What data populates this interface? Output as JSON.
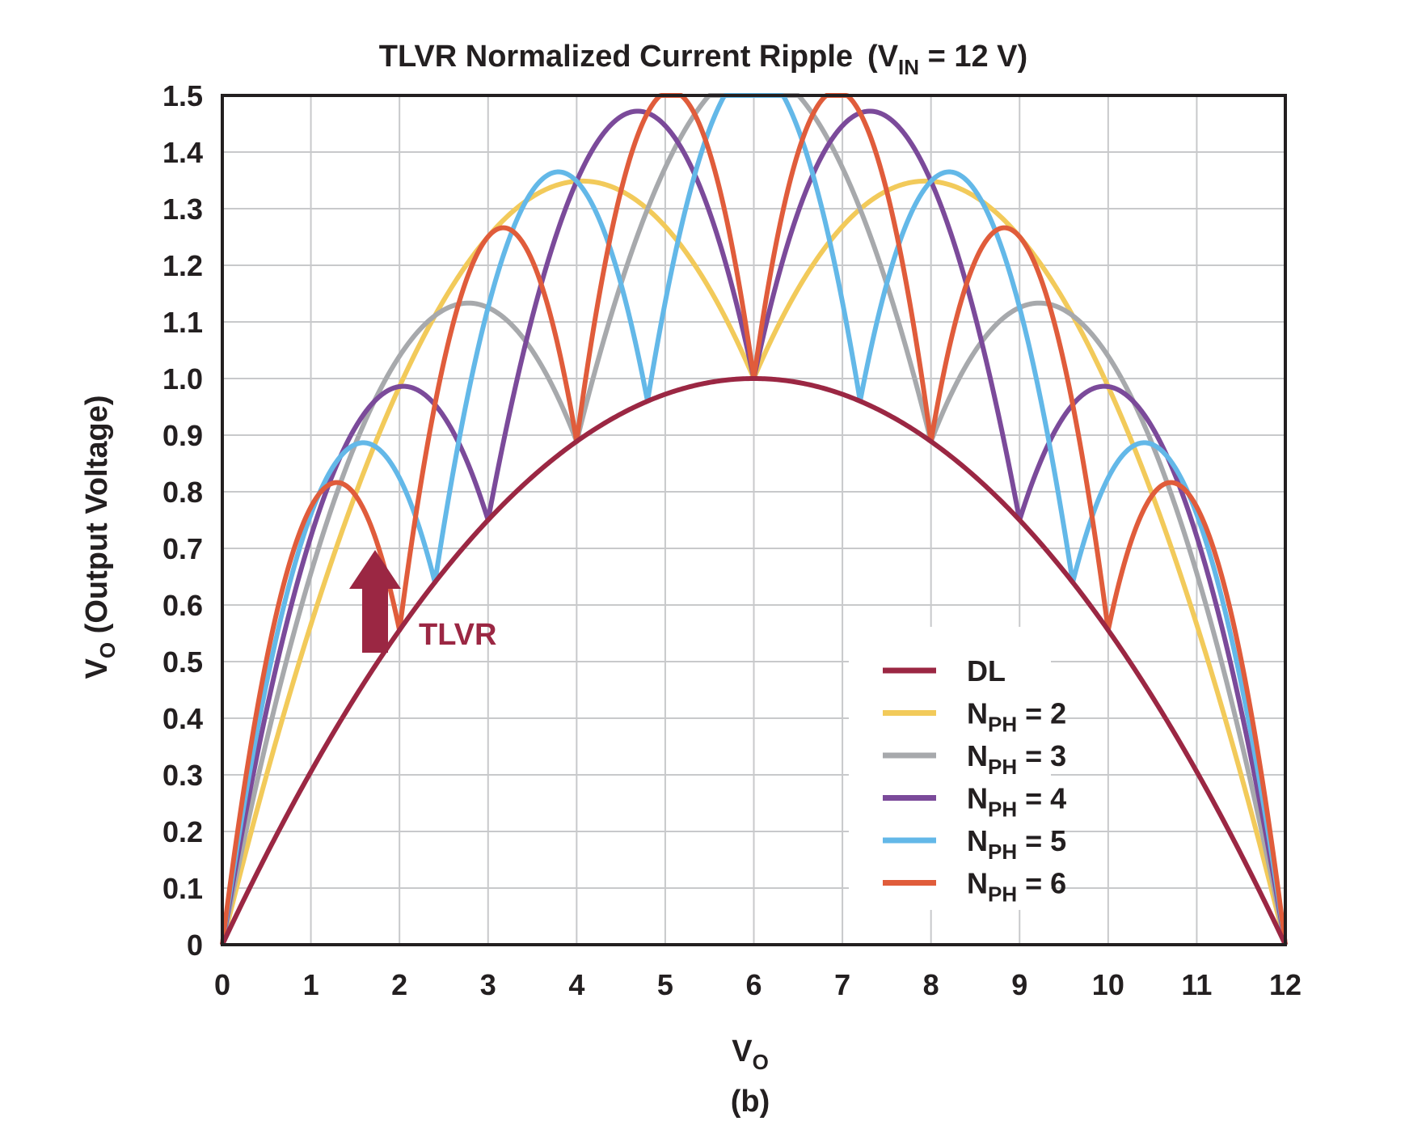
{
  "chart_data": {
    "type": "line",
    "title": {
      "main": "TLVR Normalized Current Ripple",
      "open": "(V",
      "sub": "IN",
      "rest": " = 12 V)"
    },
    "xlabel": {
      "main": "V",
      "sub": "O"
    },
    "ylabel": {
      "main": "V",
      "sub": "O",
      "rest": " (Output Voltage)"
    },
    "caption": "(b)",
    "vin": 12,
    "xlim": [
      0,
      12
    ],
    "ylim": [
      0,
      1.5
    ],
    "x_ticks": [
      "0",
      "1",
      "2",
      "3",
      "4",
      "5",
      "6",
      "7",
      "8",
      "9",
      "10",
      "11",
      "12"
    ],
    "y_ticks": [
      "0",
      "0.1",
      "0.2",
      "0.3",
      "0.4",
      "0.5",
      "0.6",
      "0.7",
      "0.8",
      "0.9",
      "1.0",
      "1.1",
      "1.2",
      "1.3",
      "1.4",
      "1.5"
    ],
    "grid": true,
    "legend_position": "bottom-right",
    "annotation": {
      "text": "TLVR",
      "color": "#9b2743"
    },
    "series": [
      {
        "name": "DL",
        "nph": 1,
        "color": "#9b2743"
      },
      {
        "name": "N",
        "sub": "PH",
        "suffix": " = 2",
        "nph": 2,
        "color": "#f2ca5a"
      },
      {
        "name": "N",
        "sub": "PH",
        "suffix": " = 3",
        "nph": 3,
        "color": "#a7a9ac"
      },
      {
        "name": "N",
        "sub": "PH",
        "suffix": " = 4",
        "nph": 4,
        "color": "#7b4a9a"
      },
      {
        "name": "N",
        "sub": "PH",
        "suffix": " = 5",
        "nph": 5,
        "color": "#63b8e8"
      },
      {
        "name": "N",
        "sub": "PH",
        "suffix": " = 6",
        "nph": 6,
        "color": "#e05c3b"
      }
    ]
  }
}
